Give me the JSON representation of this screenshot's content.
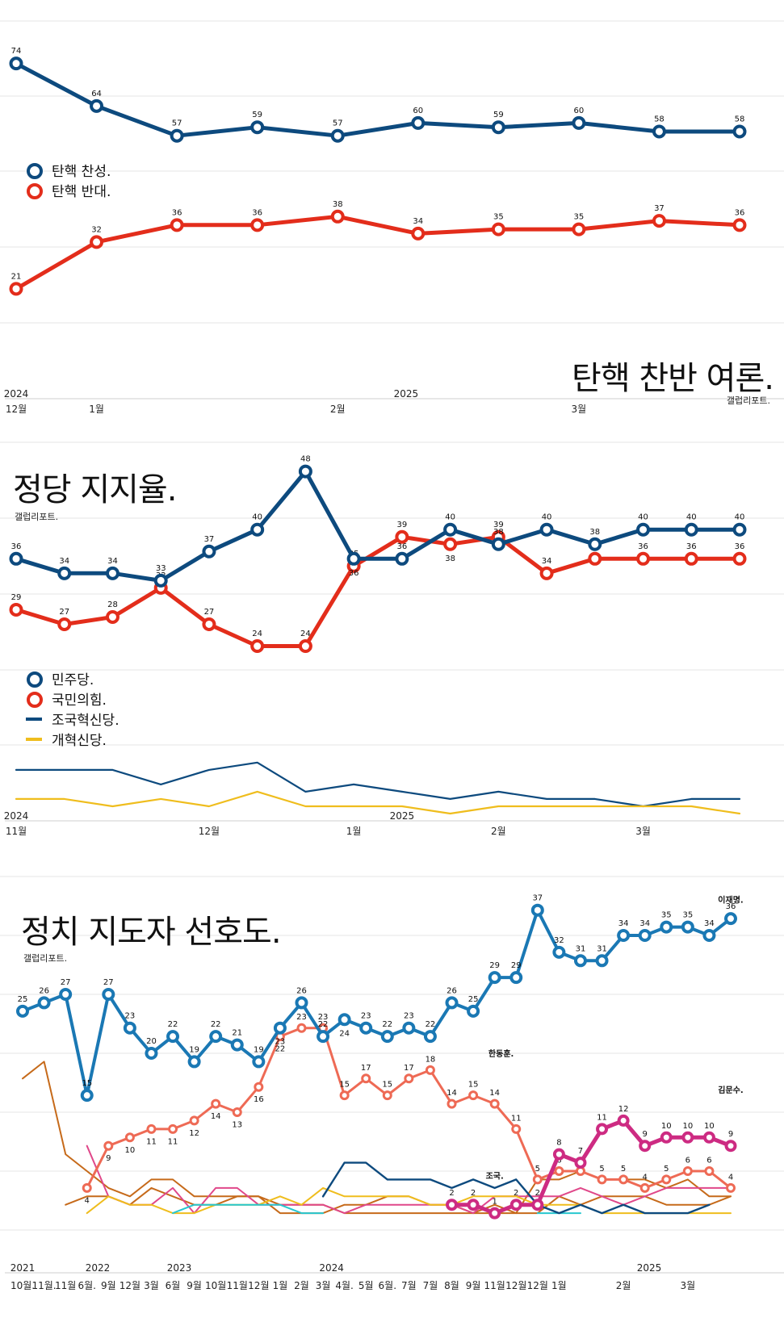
{
  "colors": {
    "navy": "#0d4a7e",
    "red": "#e32d1b",
    "blue": "#1a78b4",
    "salmon": "#ee6a55",
    "magenta": "#cd2b82",
    "orange": "#c66a1a",
    "yellow": "#efbd1d",
    "cyan": "#27c7cf",
    "pink": "#e0488a",
    "grid": "#e6e6e6"
  },
  "section1": {
    "title": "탄핵 찬반 여론.",
    "source": "갤럽리포트.",
    "legend": [
      "탄핵 찬성.",
      "탄핵 반대."
    ],
    "x_ticks": [
      {
        "year": "2024",
        "label": "12월",
        "idx": 0
      },
      {
        "year": "",
        "label": "1월",
        "idx": 1
      },
      {
        "year": "",
        "label": "2월",
        "idx": 4
      },
      {
        "year": "2025",
        "label": "",
        "idx": 4.85
      },
      {
        "year": "",
        "label": "3월",
        "idx": 7
      }
    ]
  },
  "section2": {
    "title": "정당 지지율.",
    "source": "갤럽리포트.",
    "legend": [
      "민주당.",
      "국민의힘.",
      "조국혁신당.",
      "개혁신당."
    ],
    "x_ticks": [
      {
        "year": "2024",
        "label": "11월",
        "idx": 0
      },
      {
        "year": "",
        "label": "12월",
        "idx": 4
      },
      {
        "year": "",
        "label": "1월",
        "idx": 7
      },
      {
        "year": "2025",
        "label": "",
        "idx": 8
      },
      {
        "year": "",
        "label": "2월",
        "idx": 10
      },
      {
        "year": "",
        "label": "3월",
        "idx": 13
      }
    ]
  },
  "section3": {
    "title": "정치 지도자 선호도.",
    "source": "갤럽리포트.",
    "name_labels": [
      "이재명.",
      "한동훈.",
      "김문수.",
      "조국."
    ],
    "x_years": [
      {
        "year": "2021",
        "idx": 0
      },
      {
        "year": "2022",
        "idx": 3.5
      },
      {
        "year": "2023",
        "idx": 7.3
      },
      {
        "year": "2024",
        "idx": 14.4
      },
      {
        "year": "2025",
        "idx": 29.2
      }
    ],
    "x_months": [
      "10월.",
      "11월.",
      "11월",
      "6월.",
      "9월",
      "12월",
      "3월",
      "6월",
      "9월",
      "10월",
      "11월",
      "12월",
      "1월",
      "2월",
      "3월",
      "4월.",
      "5월",
      "6월.",
      "7월",
      "7월",
      "8월",
      "9월",
      "11월",
      "12월",
      "12월",
      "1월",
      "",
      "",
      "2월",
      "",
      "",
      "3월",
      "",
      ""
    ]
  },
  "chart_data": [
    {
      "type": "line",
      "title": "탄핵 찬반 여론.",
      "x_count": 10,
      "ylim": [
        13,
        84
      ],
      "series": [
        {
          "name": "탄핵 찬성.",
          "values": [
            74,
            64,
            57,
            59,
            57,
            60,
            59,
            60,
            58,
            58
          ],
          "color": "#0d4a7e"
        },
        {
          "name": "탄핵 반대.",
          "values": [
            21,
            32,
            36,
            36,
            38,
            34,
            35,
            35,
            37,
            36
          ],
          "color": "#e32d1b"
        }
      ]
    },
    {
      "type": "line",
      "title": "정당 지지율.",
      "x_count": 16,
      "ylim": [
        0,
        52
      ],
      "series": [
        {
          "name": "민주당.",
          "values": [
            36,
            34,
            34,
            33,
            37,
            40,
            48,
            36,
            36,
            40,
            38,
            40,
            38,
            40,
            40,
            40
          ],
          "color": "#0d4a7e"
        },
        {
          "name": "국민의힘.",
          "values": [
            29,
            27,
            28,
            32,
            27,
            24,
            24,
            35,
            39,
            38,
            39,
            34,
            36,
            36,
            36,
            36
          ],
          "color": "#e32d1b"
        },
        {
          "name": "조국혁신당.",
          "values": [
            7,
            7,
            7,
            5,
            7,
            8,
            4,
            5,
            4,
            3,
            4,
            3,
            3,
            2,
            3,
            3
          ],
          "color": "#0d4a7e"
        },
        {
          "name": "개혁신당.",
          "values": [
            3,
            3,
            2,
            3,
            2,
            4,
            2,
            2,
            2,
            1,
            2,
            2,
            2,
            2,
            2,
            1
          ],
          "color": "#efbd1d"
        }
      ]
    },
    {
      "type": "line",
      "title": "정치 지도자 선호도.",
      "x_count": 34,
      "ylim": [
        -1,
        41
      ],
      "series": [
        {
          "name": "이재명.",
          "values": [
            25,
            26,
            27,
            15,
            27,
            23,
            20,
            22,
            19,
            22,
            21,
            19,
            23,
            26,
            22,
            24,
            23,
            22,
            23,
            22,
            26,
            25,
            29,
            29,
            37,
            32,
            31,
            31,
            34,
            34,
            35,
            35,
            34,
            36
          ],
          "color": "#1a78b4"
        },
        {
          "name": "한동훈.",
          "values": [
            null,
            null,
            null,
            4,
            9,
            10,
            11,
            11,
            12,
            14,
            13,
            16,
            22,
            23,
            23,
            15,
            17,
            15,
            17,
            18,
            14,
            15,
            14,
            11,
            5,
            6,
            6,
            5,
            5,
            4,
            5,
            6,
            6,
            4
          ],
          "color": "#ee6a55"
        },
        {
          "name": "김문수.",
          "values": [
            null,
            null,
            null,
            null,
            null,
            null,
            null,
            null,
            null,
            null,
            null,
            null,
            null,
            null,
            null,
            null,
            null,
            null,
            null,
            null,
            2,
            2,
            1,
            2,
            2,
            8,
            7,
            11,
            12,
            9,
            10,
            10,
            10,
            9
          ],
          "color": "#cd2b82"
        },
        {
          "name": "조국.",
          "values": [
            null,
            null,
            null,
            null,
            null,
            null,
            null,
            null,
            null,
            null,
            null,
            null,
            null,
            null,
            3,
            7,
            7,
            5,
            5,
            5,
            4,
            5,
            4,
            5,
            2,
            1,
            2,
            1,
            2,
            1,
            1,
            1,
            2,
            null
          ],
          "color": "#0d4a7e"
        },
        {
          "name": "",
          "values": [
            17,
            19,
            8,
            6,
            4,
            3,
            5,
            5,
            3,
            3,
            3,
            3,
            2,
            2,
            2,
            1,
            1,
            1,
            1,
            1,
            1,
            1,
            1,
            1,
            5,
            5,
            6,
            5,
            5,
            5,
            4,
            5,
            3,
            3
          ],
          "color": "#c66a1a"
        },
        {
          "name": "",
          "values": [
            null,
            null,
            2,
            3,
            3,
            2,
            4,
            3,
            2,
            2,
            3,
            3,
            1,
            1,
            1,
            2,
            2,
            3,
            3,
            2,
            2,
            1,
            2,
            1,
            1,
            3,
            2,
            3,
            3,
            3,
            2,
            2,
            2,
            3
          ],
          "color": "#c66a1a"
        },
        {
          "name": "",
          "values": [
            null,
            null,
            null,
            9,
            3,
            2,
            2,
            4,
            1,
            4,
            4,
            2,
            2,
            2,
            2,
            1,
            2,
            2,
            2,
            2,
            2,
            1,
            3,
            3,
            3,
            3,
            4,
            3,
            2,
            3,
            4,
            4,
            4,
            4
          ],
          "color": "#e0488a"
        },
        {
          "name": "",
          "values": [
            null,
            null,
            null,
            1,
            3,
            2,
            2,
            1,
            1,
            2,
            2,
            2,
            3,
            2,
            4,
            3,
            3,
            3,
            3,
            2,
            2,
            3,
            3,
            3,
            2,
            2,
            2,
            1,
            1,
            1,
            1,
            1,
            1,
            1
          ],
          "color": "#efbd1d"
        },
        {
          "name": "",
          "values": [
            null,
            null,
            null,
            null,
            null,
            null,
            null,
            1,
            2,
            2,
            2,
            2,
            2,
            1,
            1,
            null,
            null,
            null,
            null,
            null,
            null,
            null,
            null,
            null,
            1,
            1,
            1,
            null,
            null,
            null,
            null,
            null,
            null,
            null
          ],
          "color": "#27c7cf"
        }
      ]
    }
  ]
}
